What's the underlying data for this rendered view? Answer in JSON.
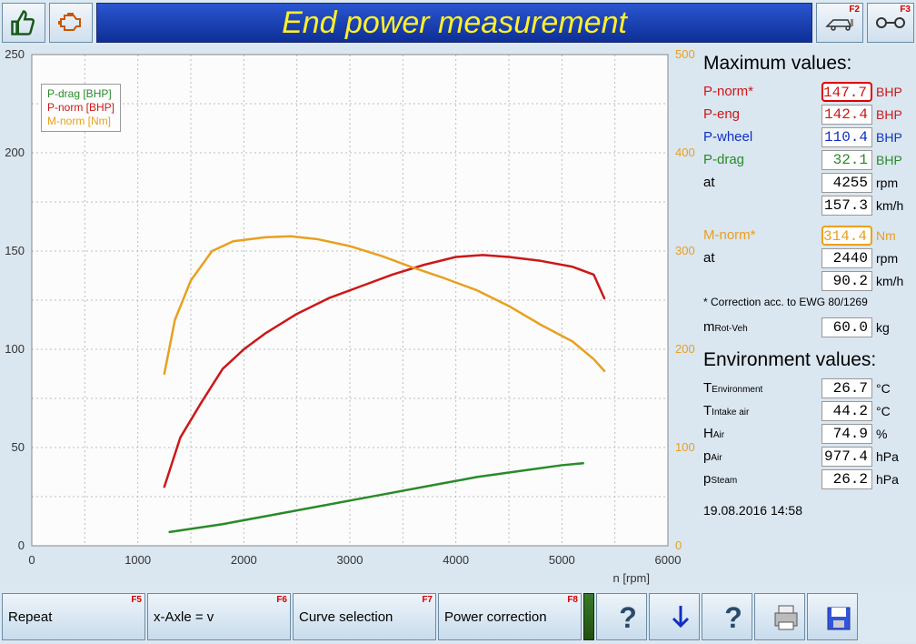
{
  "title": "End power measurement",
  "toolbar_right": [
    {
      "fkey": "F2",
      "icon": "car"
    },
    {
      "fkey": "F3",
      "icon": "axle"
    }
  ],
  "chart": {
    "type": "line",
    "x_label": "n [rpm]",
    "xlim": [
      0,
      6000
    ],
    "xtick_step": 1000,
    "y_left_lim": [
      0,
      250
    ],
    "y_left_tick_step": 50,
    "y_right_lim": [
      0,
      500
    ],
    "y_right_tick_step": 100,
    "background_color": "#fcfcfc",
    "grid_color": "#bcbcbc",
    "grid_dash": "2,3",
    "legend": [
      {
        "label": "P-drag [BHP]",
        "color": "#2a8a2a"
      },
      {
        "label": "P-norm [BHP]",
        "color": "#cc1818"
      },
      {
        "label": "M-norm [Nm]",
        "color": "#e8a020"
      }
    ],
    "series": {
      "p_drag": {
        "color": "#2a8a2a",
        "width": 2.5,
        "axis": "left",
        "points": [
          [
            1300,
            7
          ],
          [
            1800,
            11
          ],
          [
            2200,
            15
          ],
          [
            2600,
            19
          ],
          [
            3000,
            23
          ],
          [
            3400,
            27
          ],
          [
            3800,
            31
          ],
          [
            4200,
            35
          ],
          [
            4600,
            38
          ],
          [
            5000,
            41
          ],
          [
            5200,
            42
          ]
        ]
      },
      "p_norm": {
        "color": "#cc1818",
        "width": 2.5,
        "axis": "left",
        "points": [
          [
            1250,
            30
          ],
          [
            1400,
            55
          ],
          [
            1600,
            73
          ],
          [
            1800,
            90
          ],
          [
            2000,
            100
          ],
          [
            2200,
            108
          ],
          [
            2500,
            118
          ],
          [
            2800,
            126
          ],
          [
            3100,
            132
          ],
          [
            3400,
            138
          ],
          [
            3700,
            143
          ],
          [
            4000,
            147
          ],
          [
            4255,
            148
          ],
          [
            4500,
            147
          ],
          [
            4800,
            145
          ],
          [
            5100,
            142
          ],
          [
            5300,
            138
          ],
          [
            5400,
            126
          ]
        ]
      },
      "m_norm": {
        "color": "#e8a020",
        "width": 2.5,
        "axis": "right",
        "points": [
          [
            1250,
            175
          ],
          [
            1350,
            230
          ],
          [
            1500,
            270
          ],
          [
            1700,
            300
          ],
          [
            1900,
            310
          ],
          [
            2200,
            314
          ],
          [
            2440,
            315
          ],
          [
            2700,
            312
          ],
          [
            3000,
            305
          ],
          [
            3300,
            295
          ],
          [
            3600,
            283
          ],
          [
            3900,
            272
          ],
          [
            4200,
            260
          ],
          [
            4500,
            244
          ],
          [
            4800,
            225
          ],
          [
            5100,
            208
          ],
          [
            5300,
            190
          ],
          [
            5400,
            178
          ]
        ]
      }
    }
  },
  "max_values": {
    "heading": "Maximum values:",
    "rows": [
      {
        "label": "P-norm*",
        "value": "147.7",
        "unit": "BHP",
        "color": "#cc1818",
        "box": "red"
      },
      {
        "label": "P-eng",
        "value": "142.4",
        "unit": "BHP",
        "color": "#cc1818"
      },
      {
        "label": "P-wheel",
        "value": "110.4",
        "unit": "BHP",
        "color": "#1030c0"
      },
      {
        "label": "P-drag",
        "value": "32.1",
        "unit": "BHP",
        "color": "#2a8a2a"
      },
      {
        "label": "at",
        "value": "4255",
        "unit": "rpm",
        "color": "#000"
      },
      {
        "label": "",
        "value": "157.3",
        "unit": "km/h",
        "color": "#000"
      }
    ],
    "rows2": [
      {
        "label": "M-norm*",
        "value": "314.4",
        "unit": "Nm",
        "color": "#e8a020",
        "box": "orange"
      },
      {
        "label": "at",
        "value": "2440",
        "unit": "rpm",
        "color": "#000"
      },
      {
        "label": "",
        "value": "90.2",
        "unit": "km/h",
        "color": "#000"
      }
    ],
    "note": "* Correction acc. to EWG 80/1269",
    "mrot": {
      "label": "m",
      "sub": "Rot-Veh",
      "value": "60.0",
      "unit": "kg"
    }
  },
  "env": {
    "heading": "Environment values:",
    "rows": [
      {
        "label": "T",
        "sub": "Environment",
        "value": "26.7",
        "unit": "°C"
      },
      {
        "label": "T",
        "sub": "Intake air",
        "value": "44.2",
        "unit": "°C"
      },
      {
        "label": "H",
        "sub": "Air",
        "value": "74.9",
        "unit": "%"
      },
      {
        "label": "p",
        "sub": "Air",
        "value": "977.4",
        "unit": "hPa"
      },
      {
        "label": "p",
        "sub": "Steam",
        "value": "26.2",
        "unit": "hPa"
      }
    ]
  },
  "timestamp": "19.08.2016  14:58",
  "footer": {
    "buttons": [
      {
        "label": "Repeat",
        "fkey": "F5",
        "w": 158
      },
      {
        "label": "x-Axle = v",
        "fkey": "F6",
        "w": 158
      },
      {
        "label": "Curve selection",
        "fkey": "F7",
        "w": 158
      },
      {
        "label": "Power correction",
        "fkey": "F8",
        "w": 158
      }
    ]
  }
}
